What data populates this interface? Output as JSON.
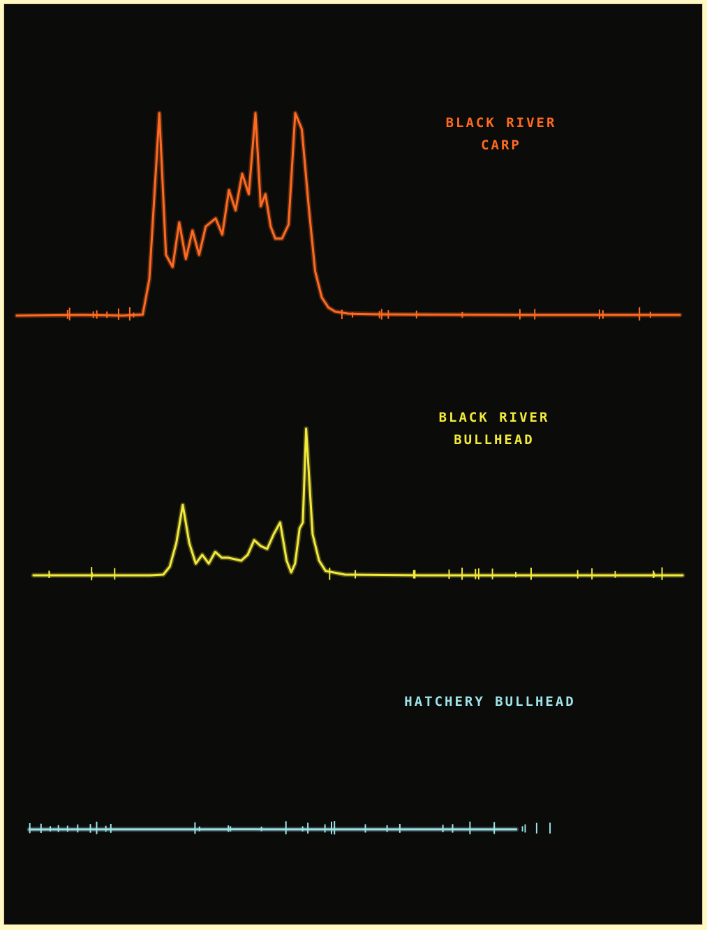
{
  "colors": {
    "background": "#0b0b09",
    "border": "#fff7c4",
    "series": [
      "#ff6a22",
      "#f2ea3c",
      "#9fe3e8"
    ]
  },
  "chart_data": {
    "type": "line",
    "grid": false,
    "legend": "none",
    "xlim": [
      0,
      100
    ],
    "series": [
      {
        "name": "BLACK RIVER CARP",
        "label_lines": [
          "BLACK RIVER",
          "CARP"
        ],
        "color": "#ff6a22",
        "x": [
          0,
          10,
          16,
          19,
          20,
          21.5,
          22.5,
          23.5,
          24.5,
          25.5,
          26.5,
          27.5,
          28.5,
          30,
          31,
          32,
          33,
          34,
          35,
          36,
          36.8,
          37.5,
          38.3,
          39,
          40,
          41,
          42,
          43,
          44,
          45,
          46,
          47,
          48,
          50,
          55,
          65,
          75,
          85,
          95,
          100
        ],
        "values": [
          0,
          0.3,
          0,
          0.5,
          18,
          100,
          30,
          24,
          46,
          28,
          42,
          30,
          44,
          48,
          40,
          62,
          52,
          70,
          60,
          100,
          54,
          60,
          44,
          38,
          38,
          45,
          100,
          92,
          55,
          22,
          9,
          4,
          2,
          1,
          0.6,
          0.4,
          0.3,
          0.3,
          0.3,
          0.3
        ]
      },
      {
        "name": "BLACK RIVER BULLHEAD",
        "label_lines": [
          "BLACK RIVER",
          "BULLHEAD"
        ],
        "color": "#f2ea3c",
        "x": [
          0,
          10,
          18,
          20,
          21,
          22,
          23,
          24,
          25,
          26,
          27,
          28,
          29,
          30,
          32,
          33,
          34,
          35,
          36,
          37,
          38,
          39,
          39.7,
          40.3,
          41,
          41.5,
          42,
          43,
          44,
          45,
          48,
          60,
          80,
          100
        ],
        "values": [
          0,
          0,
          0,
          0.5,
          6,
          22,
          48,
          22,
          8,
          14,
          8,
          16,
          12,
          12,
          10,
          14,
          24,
          20,
          18,
          28,
          36,
          10,
          2,
          8,
          32,
          36,
          100,
          28,
          10,
          3,
          0.5,
          0,
          0,
          0
        ]
      },
      {
        "name": "HATCHERY BULLHEAD",
        "label_lines": [
          "HATCHERY BULLHEAD"
        ],
        "color": "#9fe3e8",
        "x": [
          0,
          10,
          20,
          30,
          35,
          36.5,
          38,
          40,
          50,
          60,
          70,
          80,
          87
        ],
        "values": [
          0,
          1,
          1.5,
          2,
          2,
          3,
          3.5,
          2.5,
          2,
          1.5,
          1,
          1,
          1
        ]
      }
    ]
  }
}
